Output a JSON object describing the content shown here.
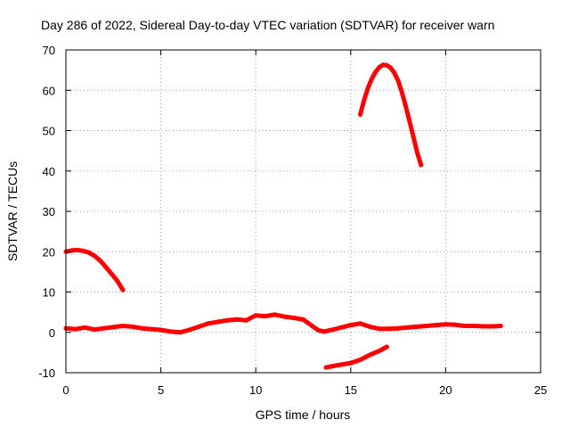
{
  "chart_data": {
    "type": "line",
    "title": "Day 286 of 2022, Sidereal Day-to-day VTEC variation (SDTVAR) for receiver warn",
    "xlabel": "GPS time / hours",
    "ylabel": "SDTVAR / TECUs",
    "xlim": [
      0,
      25
    ],
    "ylim": [
      -10,
      70
    ],
    "xticks": [
      0,
      5,
      10,
      15,
      20,
      25
    ],
    "yticks": [
      -10,
      0,
      10,
      20,
      30,
      40,
      50,
      60,
      70
    ],
    "grid": true,
    "color": "#ff0000",
    "series": [
      {
        "name": "sdtvar-segment-1",
        "x": [
          0.0,
          0.3,
          0.6,
          0.9,
          1.2,
          1.5,
          1.8,
          2.1,
          2.4,
          2.7,
          3.0
        ],
        "y": [
          20.0,
          20.3,
          20.4,
          20.2,
          19.8,
          19.0,
          17.8,
          16.2,
          14.5,
          12.8,
          10.5
        ]
      },
      {
        "name": "sdtvar-segment-2",
        "x": [
          0.0,
          0.5,
          1.0,
          1.5,
          2.0,
          2.5,
          3.0,
          3.5,
          4.0,
          4.5,
          5.0,
          5.5,
          6.0,
          6.5,
          7.0,
          7.5,
          8.0,
          8.5,
          9.0,
          9.5,
          10.0,
          10.5,
          11.0,
          11.5,
          12.0,
          12.5,
          13.0,
          13.3,
          13.6,
          14.0,
          14.5,
          15.0,
          15.5,
          16.0,
          16.5,
          17.0,
          17.5,
          18.0,
          18.5,
          19.0,
          19.5,
          20.0,
          20.5,
          21.0,
          21.5,
          22.0,
          22.5,
          22.9
        ],
        "y": [
          1.0,
          0.8,
          1.2,
          0.7,
          1.0,
          1.3,
          1.6,
          1.4,
          1.0,
          0.8,
          0.6,
          0.2,
          0.0,
          0.6,
          1.4,
          2.2,
          2.6,
          3.0,
          3.2,
          3.0,
          4.2,
          4.0,
          4.4,
          3.9,
          3.6,
          3.2,
          1.5,
          0.5,
          0.2,
          0.6,
          1.2,
          1.8,
          2.2,
          1.4,
          0.9,
          0.9,
          1.0,
          1.2,
          1.4,
          1.6,
          1.8,
          2.0,
          1.9,
          1.6,
          1.6,
          1.5,
          1.5,
          1.6
        ]
      },
      {
        "name": "sdtvar-segment-3",
        "x": [
          13.7,
          14.0,
          14.5,
          15.0,
          15.5,
          16.0,
          16.5,
          16.9
        ],
        "y": [
          -8.7,
          -8.4,
          -8.0,
          -7.6,
          -6.8,
          -5.6,
          -4.6,
          -3.6
        ]
      },
      {
        "name": "sdtvar-segment-4",
        "x": [
          15.5,
          15.7,
          15.9,
          16.1,
          16.3,
          16.5,
          16.7,
          16.9,
          17.1,
          17.3,
          17.5,
          17.7,
          17.9,
          18.1,
          18.3,
          18.5,
          18.7
        ],
        "y": [
          54.0,
          57.5,
          60.5,
          62.8,
          64.5,
          65.7,
          66.3,
          66.2,
          65.6,
          64.3,
          62.3,
          59.4,
          56.0,
          52.3,
          48.4,
          44.6,
          41.5
        ]
      }
    ]
  }
}
